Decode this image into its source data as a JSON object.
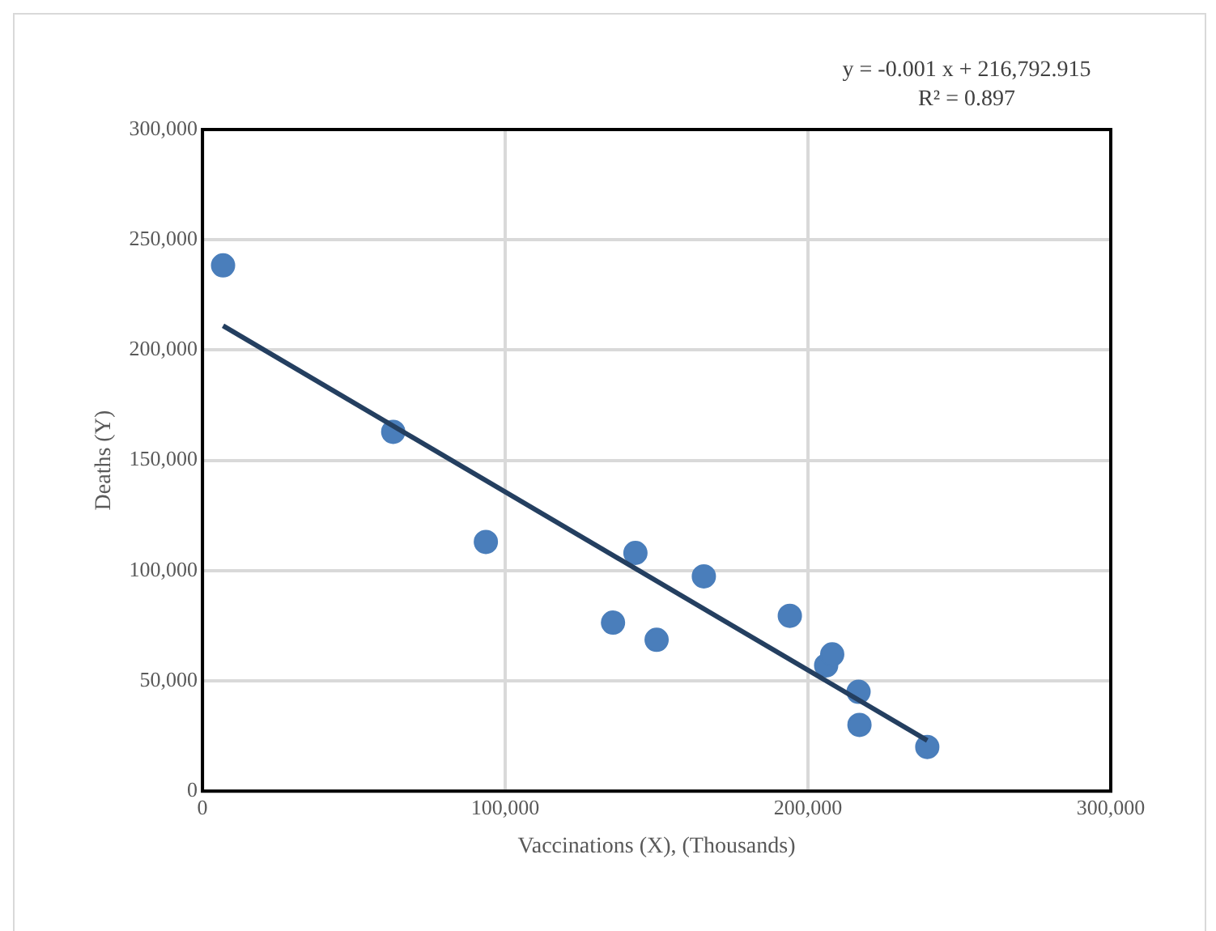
{
  "chart_data": {
    "type": "scatter",
    "xlabel": "Vaccinations (X), (Thousands)",
    "ylabel": "Deaths (Y)",
    "annotations": [
      "y = -0.001 x + 216,792.915",
      "R² = 0.897"
    ],
    "xlim": [
      0,
      300000
    ],
    "xticks": [
      {
        "value": 0,
        "label": "0"
      },
      {
        "value": 100000,
        "label": "100,000"
      },
      {
        "value": 200000,
        "label": "200,000"
      },
      {
        "value": 300000,
        "label": "300,000"
      }
    ],
    "ylim": [
      0,
      300000
    ],
    "yticks": [
      {
        "value": 0,
        "label": "0"
      },
      {
        "value": 50000,
        "label": "50,000"
      },
      {
        "value": 100000,
        "label": "100,000"
      },
      {
        "value": 150000,
        "label": "150,000"
      },
      {
        "value": 200000,
        "label": "200,000"
      },
      {
        "value": 250000,
        "label": "250,000"
      },
      {
        "value": 300000,
        "label": "300,000"
      }
    ],
    "grid": true,
    "legend": false,
    "marker": "circle",
    "series": [
      {
        "color": "#4a7ebb",
        "x": [
          6800,
          63000,
          93600,
          135600,
          143000,
          150000,
          165600,
          194000,
          206000,
          208000,
          216700,
          217000,
          239400
        ],
        "values": [
          238400,
          162900,
          113000,
          76400,
          108000,
          68600,
          97400,
          79500,
          57000,
          62000,
          45000,
          30000,
          20000
        ]
      },
      {
        "type": "line",
        "color": "#243f60",
        "marker": "none",
        "x": [
          6800,
          239400
        ],
        "values": [
          211000,
          23000
        ]
      }
    ]
  }
}
